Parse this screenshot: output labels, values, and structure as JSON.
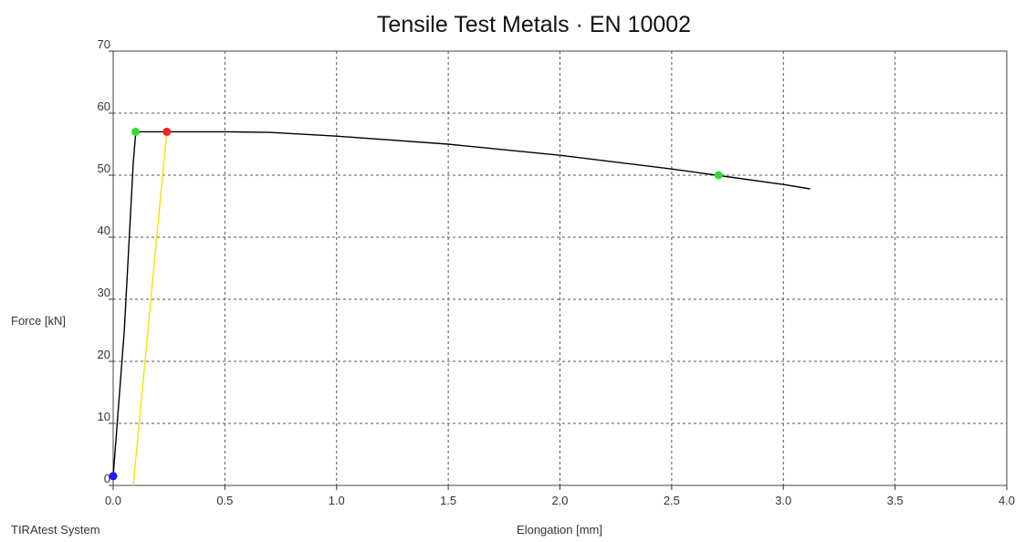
{
  "chart_data": {
    "type": "line",
    "title": "Tensile Test Metals · EN 10002",
    "xlabel": "Elongation [mm]",
    "ylabel": "Force [kN]",
    "xlim": [
      0,
      4.0
    ],
    "ylim": [
      0,
      70
    ],
    "x_ticks": [
      0,
      0.5,
      1.0,
      1.5,
      2.0,
      2.5,
      3.0,
      3.5,
      4.0
    ],
    "x_tick_labels": [
      "0.0",
      "0.5",
      "1.0",
      "1.5",
      "2.0",
      "2.5",
      "3.0",
      "3.5",
      "4.0"
    ],
    "y_ticks": [
      0,
      10,
      20,
      30,
      40,
      50,
      60,
      70
    ],
    "y_tick_labels": [
      "0",
      "10",
      "20",
      "30",
      "40",
      "50",
      "60",
      "70"
    ],
    "grid": true,
    "series": [
      {
        "color": "#000000",
        "points": [
          [
            0.0,
            1.5
          ],
          [
            0.05,
            25
          ],
          [
            0.09,
            52
          ],
          [
            0.1,
            56.5
          ],
          [
            0.12,
            57
          ],
          [
            0.25,
            57
          ],
          [
            0.5,
            57
          ],
          [
            0.7,
            56.9
          ],
          [
            1.0,
            56.3
          ],
          [
            1.5,
            55
          ],
          [
            2.0,
            53.2
          ],
          [
            2.5,
            51
          ],
          [
            2.7,
            50
          ],
          [
            3.0,
            48.5
          ],
          [
            3.12,
            47.8
          ]
        ]
      },
      {
        "color": "#f2e600",
        "points": [
          [
            0.09,
            0
          ],
          [
            0.24,
            57
          ]
        ]
      }
    ],
    "markers": [
      {
        "x": 0.0,
        "y": 1.5,
        "color": "#1a1aff"
      },
      {
        "x": 0.1,
        "y": 57,
        "color": "#33dd33"
      },
      {
        "x": 0.24,
        "y": 57,
        "color": "#ff2020"
      },
      {
        "x": 2.71,
        "y": 50,
        "color": "#33dd33"
      }
    ]
  },
  "footer": {
    "system_label": "TIRAtest System"
  }
}
